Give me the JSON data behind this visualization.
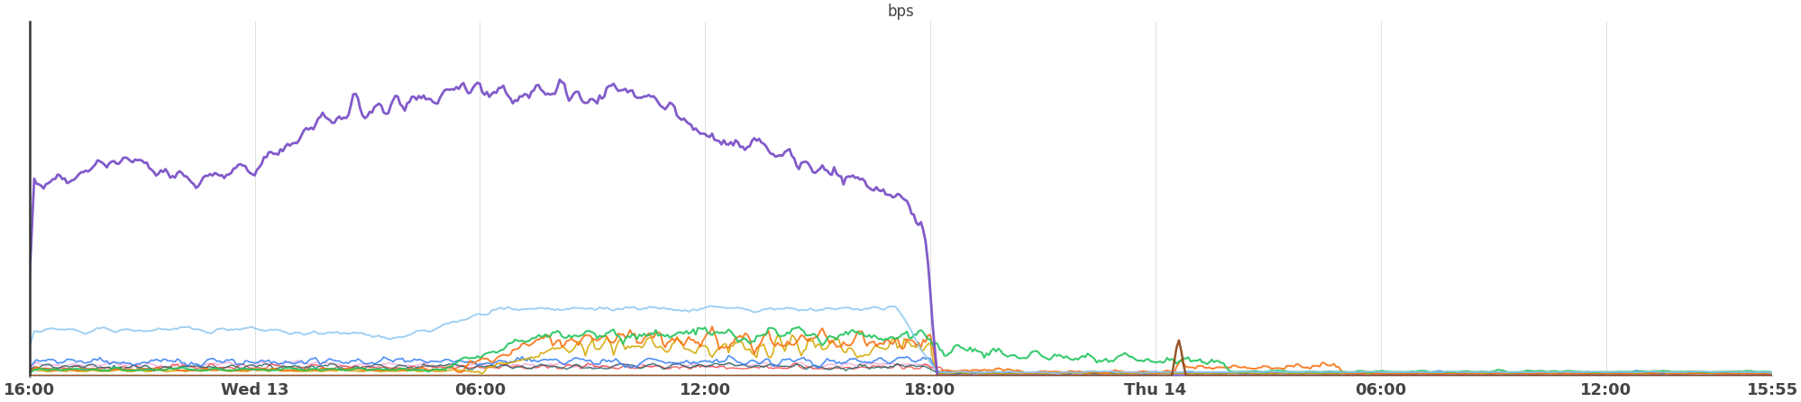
{
  "title": "bps",
  "title_fontsize": 12,
  "background_color": "#ffffff",
  "grid_color": "#e0e0e0",
  "tick_label_color": "#444444",
  "tick_label_fontsize": 13,
  "x_tick_labels": [
    "16:00",
    "Wed 13",
    "06:00",
    "12:00",
    "18:00",
    "Thu 14",
    "06:00",
    "12:00",
    "15:55"
  ],
  "x_tick_positions": [
    0,
    96,
    192,
    288,
    384,
    480,
    576,
    672,
    743
  ],
  "total_points": 744,
  "ylim": [
    0,
    1.0
  ],
  "colors": {
    "purple": "#7B52C8",
    "light_blue": "#90C8F0",
    "green": "#22C55E",
    "orange": "#F97316",
    "blue": "#3B82F6",
    "red": "#EF4444",
    "pink": "#F9A8D4",
    "yellow": "#D4A800",
    "dark_teal": "#1D6060",
    "brown": "#8B4513"
  }
}
